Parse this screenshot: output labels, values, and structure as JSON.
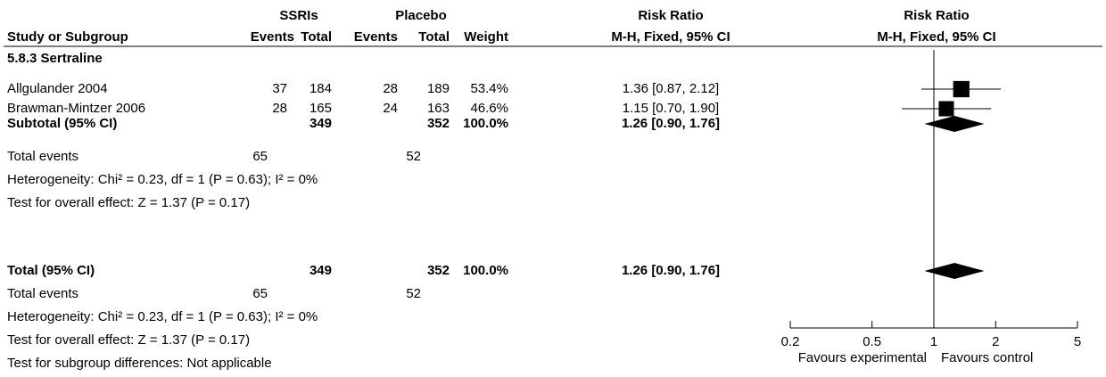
{
  "header": {
    "groups": [
      "SSRIs",
      "Placebo",
      "Risk Ratio",
      "Risk Ratio"
    ],
    "columns": [
      "Study or Subgroup",
      "Events",
      "Total",
      "Events",
      "Total",
      "Weight",
      "M-H, Fixed, 95% CI",
      "M-H, Fixed, 95% CI"
    ]
  },
  "table": {
    "rows": [
      {
        "study": "5.8.3 Sertraline"
      },
      {
        "study": "Allgulander 2004",
        "exp_events": 37,
        "exp_total": 184,
        "ctl_events": 28,
        "ctl_total": 189,
        "weight": "53.4%",
        "ci": "1.36 [0.87, 2.12]"
      },
      {
        "study": "Brawman-Mintzer 2006",
        "exp_events": 28,
        "exp_total": 165,
        "ctl_events": 24,
        "ctl_total": 163,
        "weight": "46.6%",
        "ci": "1.15 [0.70, 1.90]"
      },
      {
        "study": "Subtotal (95% CI)",
        "exp_total": 349,
        "ctl_total": 352,
        "weight": "100.0%",
        "ci": "1.26 [0.90, 1.76]"
      },
      {
        "study": "Total events",
        "exp_events": 65,
        "ctl_events": 52
      },
      {
        "study": "Heterogeneity: Chi² = 0.23, df = 1 (P = 0.63); I² = 0%"
      },
      {
        "study": "Test for overall effect: Z = 1.37 (P = 0.17)"
      },
      {
        "study": "Total (95% CI)",
        "exp_total": 349,
        "ctl_total": 352,
        "weight": "100.0%",
        "ci": "1.26 [0.90, 1.76]"
      },
      {
        "study": "Total events",
        "exp_events": 65,
        "ctl_events": 52
      },
      {
        "study": "Heterogeneity: Chi² = 0.23, df = 1 (P = 0.63); I² = 0%"
      },
      {
        "study": "Test for overall effect: Z = 1.37 (P = 0.17)"
      },
      {
        "study": "Test for subgroup differences: Not applicable"
      }
    ]
  },
  "chart_data": {
    "type": "forest",
    "log_scale": true,
    "xlim": [
      0.2,
      5
    ],
    "xticks": [
      0.2,
      0.5,
      1,
      2,
      5
    ],
    "labels": [
      "Favours experimental",
      "Favours control"
    ],
    "color": "#000000",
    "studies": [
      {
        "estimate": 1.36,
        "lower": 0.87,
        "upper": 2.12,
        "weight": 53.4
      },
      {
        "estimate": 1.15,
        "lower": 0.7,
        "upper": 1.9,
        "weight": 46.6
      }
    ],
    "summaries": [
      {
        "estimate": 1.26,
        "lower": 0.9,
        "upper": 1.76
      },
      {
        "estimate": 1.26,
        "lower": 0.9,
        "upper": 1.76
      }
    ]
  }
}
